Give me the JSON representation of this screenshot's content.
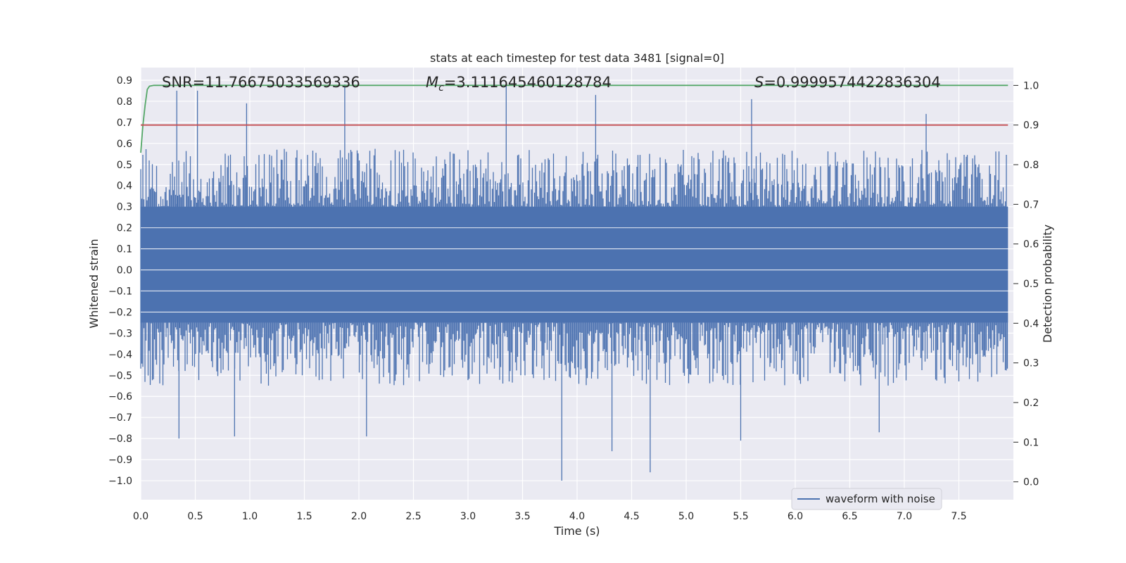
{
  "chart_data": {
    "type": "line",
    "title": "stats at each timestep for test data 3481 [signal=0]",
    "xlabel": "Time (s)",
    "ylabel_left": "Whitened strain",
    "ylabel_right": "Detection probability",
    "xlim": [
      0.0,
      8.0
    ],
    "ylim_left": [
      -1.09,
      0.96
    ],
    "ylim_right": [
      -0.045,
      1.045
    ],
    "x_ticks": [
      "0.0",
      "0.5",
      "1.0",
      "1.5",
      "2.0",
      "2.5",
      "3.0",
      "3.5",
      "4.0",
      "4.5",
      "5.0",
      "5.5",
      "6.0",
      "6.5",
      "7.0",
      "7.5"
    ],
    "y_ticks_left": [
      "0.9",
      "0.8",
      "0.7",
      "0.6",
      "0.5",
      "0.4",
      "0.3",
      "0.2",
      "0.1",
      "0.0",
      "−0.1",
      "−0.2",
      "−0.3",
      "−0.4",
      "−0.5",
      "−0.6",
      "−0.7",
      "−0.8",
      "−0.9",
      "−1.0"
    ],
    "y_ticks_right": [
      "1.0",
      "0.9",
      "0.8",
      "0.7",
      "0.6",
      "0.5",
      "0.4",
      "0.3",
      "0.2",
      "0.1",
      "0.0"
    ],
    "grid": true,
    "legend": {
      "position": "bottom-right",
      "entries": [
        "waveform with noise"
      ]
    },
    "annotations": {
      "snr": "SNR=11.76675033569336",
      "mc_symbol": "M",
      "mc_sub": "c",
      "mc_value": "=3.111645460128784",
      "s_symbol": "S",
      "s_value": "=0.9999574422836304"
    },
    "series": [
      {
        "name": "waveform with noise",
        "axis": "left",
        "color": "#4c72b0",
        "envelope_band": [
          -0.25,
          0.3
        ],
        "noise_amplitude_typical": 0.5,
        "peaks": [
          {
            "x": 0.33,
            "y": 0.85
          },
          {
            "x": 0.52,
            "y": 0.85
          },
          {
            "x": 0.97,
            "y": 0.79
          },
          {
            "x": 1.87,
            "y": 0.88
          },
          {
            "x": 3.35,
            "y": 0.88
          },
          {
            "x": 4.17,
            "y": 0.83
          },
          {
            "x": 5.6,
            "y": 0.81
          },
          {
            "x": 7.2,
            "y": 0.74
          }
        ],
        "troughs": [
          {
            "x": 0.35,
            "y": -0.8
          },
          {
            "x": 0.86,
            "y": -0.79
          },
          {
            "x": 2.07,
            "y": -0.79
          },
          {
            "x": 3.86,
            "y": -1.0
          },
          {
            "x": 4.32,
            "y": -0.86
          },
          {
            "x": 4.67,
            "y": -0.96
          },
          {
            "x": 5.5,
            "y": -0.81
          },
          {
            "x": 6.77,
            "y": -0.77
          }
        ]
      },
      {
        "name": "",
        "axis": "right",
        "color": "#55a868",
        "x": [
          0.0,
          0.02,
          0.04,
          0.06,
          0.08,
          0.12,
          0.2,
          0.5,
          1.0,
          2.0,
          4.0,
          6.0,
          7.95
        ],
        "values": [
          0.83,
          0.9,
          0.95,
          0.99,
          0.998,
          1.0,
          1.0,
          1.0,
          1.0,
          1.0,
          1.0,
          1.0,
          1.0
        ]
      },
      {
        "name": "",
        "axis": "right",
        "color": "#c44e52",
        "x": [
          0.0,
          7.95
        ],
        "values": [
          0.9,
          0.9
        ]
      }
    ]
  }
}
